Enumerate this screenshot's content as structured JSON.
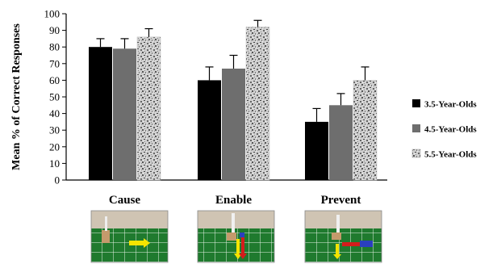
{
  "chart_data": {
    "type": "bar",
    "title": "",
    "xlabel": "",
    "ylabel": "Mean % of Correct Responses",
    "ylim": [
      0,
      100
    ],
    "yticks": [
      0,
      10,
      20,
      30,
      40,
      50,
      60,
      70,
      80,
      90,
      100
    ],
    "grid": false,
    "legend_position": "right",
    "categories": [
      "Cause",
      "Enable",
      "Prevent"
    ],
    "series": [
      {
        "name": "3.5-Year-Olds",
        "values": [
          80,
          60,
          35
        ],
        "errors": [
          5,
          8,
          8
        ],
        "color": "#000000",
        "pattern": "solid"
      },
      {
        "name": "4.5-Year-Olds",
        "values": [
          79,
          67,
          45
        ],
        "errors": [
          6,
          8,
          7
        ],
        "color": "#6e6e6e",
        "pattern": "solid"
      },
      {
        "name": "5.5-Year-Olds",
        "values": [
          86,
          92,
          60
        ],
        "errors": [
          5,
          4,
          8
        ],
        "color": "#c8c8c8",
        "pattern": "speckled"
      }
    ]
  },
  "images": [
    {
      "icon": "cause-scene-photo"
    },
    {
      "icon": "enable-scene-photo"
    },
    {
      "icon": "prevent-scene-photo"
    }
  ]
}
